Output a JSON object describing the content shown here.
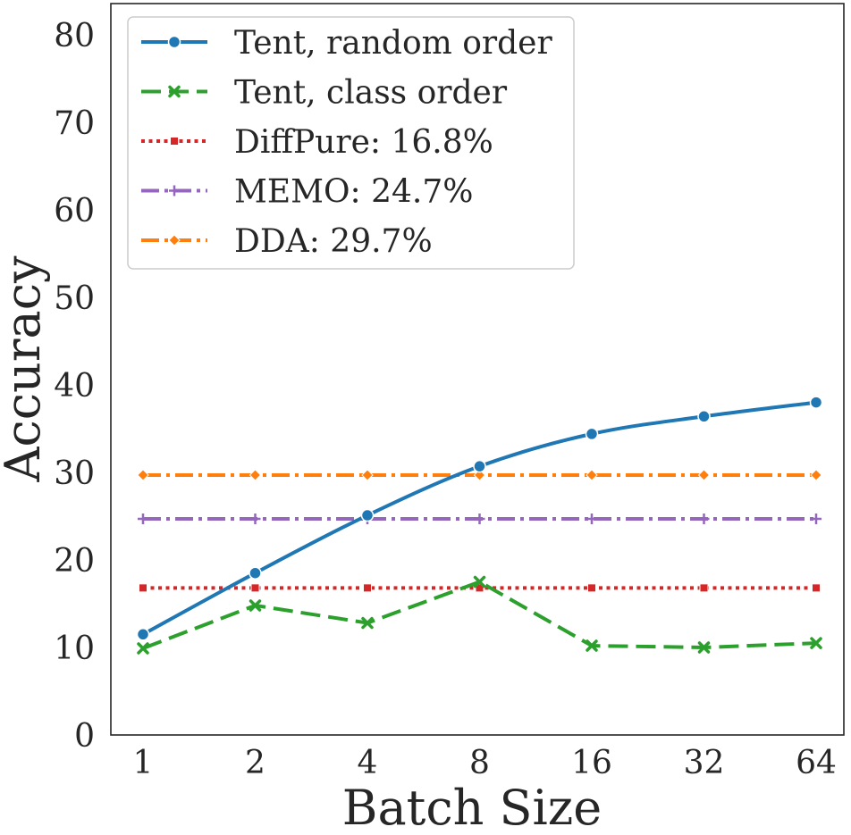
{
  "chart_data": {
    "type": "line",
    "title": "",
    "xlabel": "Batch Size",
    "ylabel": "Accuracy",
    "categories": [
      "1",
      "2",
      "4",
      "8",
      "16",
      "32",
      "64"
    ],
    "ylim": [
      0,
      80
    ],
    "yticks": [
      0,
      10,
      20,
      30,
      40,
      50,
      60,
      70,
      80
    ],
    "grid": false,
    "legend_position": "top-left",
    "series": [
      {
        "name": "Tent, random order",
        "color": "#1f77b4",
        "line_style": "solid",
        "marker": "circle",
        "values": [
          11.5,
          18.5,
          25.1,
          30.7,
          34.4,
          36.4,
          38.0
        ]
      },
      {
        "name": "Tent, class order",
        "color": "#2ca02c",
        "line_style": "dashed",
        "marker": "x",
        "values": [
          9.9,
          14.8,
          12.8,
          17.5,
          10.2,
          10.0,
          10.5
        ]
      },
      {
        "name": "DiffPure: 16.8%",
        "color": "#d62728",
        "line_style": "dotted",
        "marker": "square",
        "values": [
          16.8,
          16.8,
          16.8,
          16.8,
          16.8,
          16.8,
          16.8
        ]
      },
      {
        "name": "MEMO: 24.7%",
        "color": "#9467bd",
        "line_style": "dashdot",
        "marker": "plus",
        "values": [
          24.7,
          24.7,
          24.7,
          24.7,
          24.7,
          24.7,
          24.7
        ]
      },
      {
        "name": "DDA: 29.7%",
        "color": "#ff7f0e",
        "line_style": "dashdot",
        "marker": "diamond",
        "values": [
          29.7,
          29.7,
          29.7,
          29.7,
          29.7,
          29.7,
          29.7
        ]
      }
    ]
  }
}
